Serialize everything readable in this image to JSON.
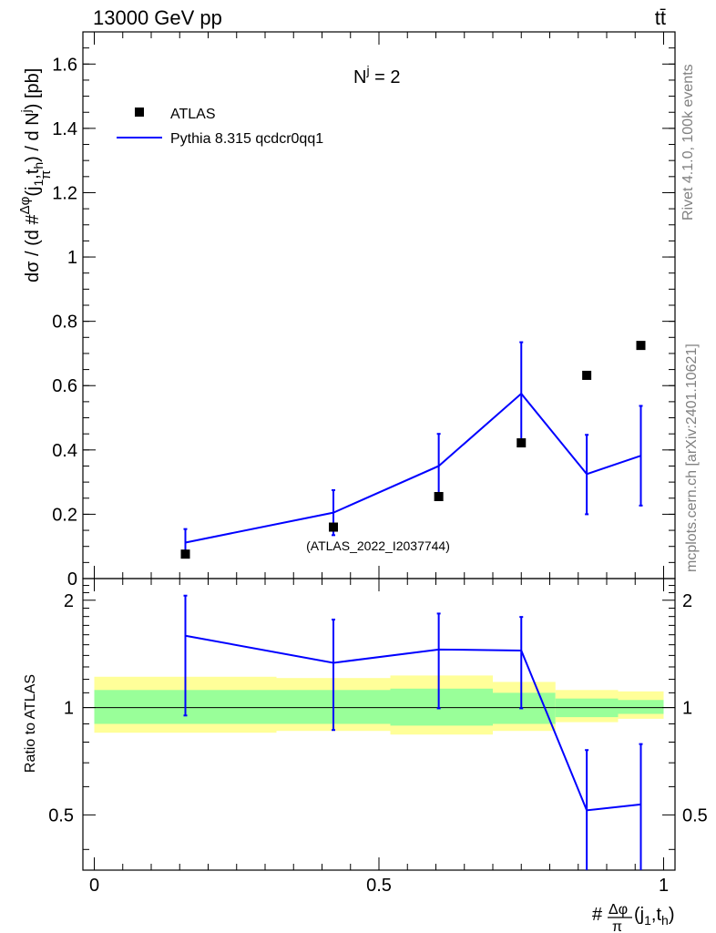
{
  "header": {
    "energy_label": "13000 GeV pp",
    "process_label": "tt̄"
  },
  "side_labels": {
    "rivet": "Rivet 4.1.0,  100k events",
    "source": "mcplots.cern.ch [arXiv:2401.10621]"
  },
  "colors": {
    "mc": "#0000ff",
    "band_inner": "#99ff99",
    "band_outer": "#ffff99",
    "data": "#000000",
    "watermark": "#999999"
  },
  "chart_data": [
    {
      "type": "scatter",
      "panel": "main",
      "annotation": "N^j = 2",
      "annotation_base": "N",
      "annotation_sup": "j",
      "annotation_rest": " = 2",
      "watermark": "(ATLAS_2022_I2037744)",
      "ylabel": "dσ / (d #Δφ/π(j1,th) / d N^j) [pb]",
      "ylabel_parts": {
        "pre": "dσ / (d #",
        "num": "Δφ",
        "den": "π",
        "args": "(j",
        "sub1": "1",
        "mid": ",t",
        "sub2": "h",
        "post": ") / d N",
        "sup": "j",
        "end": ") [pb]"
      },
      "ylim": [
        0,
        1.7
      ],
      "xlim": [
        -0.02,
        1.02
      ],
      "yticks": [
        0,
        0.2,
        0.4,
        0.6,
        0.8,
        1,
        1.2,
        1.4,
        1.6
      ],
      "ytick_labels": [
        "0",
        "0.2",
        "0.4",
        "0.6",
        "0.8",
        "1",
        "1.2",
        "1.4",
        "1.6"
      ],
      "legend": {
        "position": "top-left",
        "data_label": "ATLAS",
        "mc_label": "Pythia 8.315 qcdcr0qq1"
      },
      "series": [
        {
          "name": "ATLAS",
          "style": "markers",
          "x": [
            0.16,
            0.42,
            0.605,
            0.75,
            0.865,
            0.96
          ],
          "values": [
            0.076,
            0.16,
            0.255,
            0.422,
            0.632,
            0.725
          ]
        },
        {
          "name": "Pythia 8.315 qcdcr0qq1",
          "style": "line",
          "x": [
            0.16,
            0.42,
            0.605,
            0.75,
            0.865,
            0.96
          ],
          "values": [
            0.112,
            0.205,
            0.35,
            0.575,
            0.325,
            0.382
          ],
          "err_low": [
            0.042,
            0.07,
            0.1,
            0.16,
            0.125,
            0.155
          ],
          "err_high": [
            0.042,
            0.07,
            0.1,
            0.16,
            0.122,
            0.155
          ]
        }
      ]
    },
    {
      "type": "line",
      "panel": "ratio",
      "ylabel": "Ratio to ATLAS",
      "xlabel": "#Δφ/π(j1,th)",
      "xlabel_parts": {
        "pre": "#",
        "num": "Δφ",
        "den": "π",
        "args": "(j",
        "sub1": "1",
        "mid": ",t",
        "sub2": "h",
        "end": ")"
      },
      "ylim": [
        0.35,
        2.3
      ],
      "yticks": [
        0.5,
        1,
        2
      ],
      "ytick_labels": [
        "0.5",
        "1",
        "2"
      ],
      "xticks": [
        0,
        0.5,
        1
      ],
      "xtick_labels": [
        "0",
        "0.5",
        "1"
      ],
      "reference": 1,
      "band_edges": [
        0,
        0.32,
        0.52,
        0.7,
        0.81,
        0.92,
        1.0
      ],
      "band_inner": [
        [
          0.9,
          1.12
        ],
        [
          0.9,
          1.12
        ],
        [
          0.89,
          1.13
        ],
        [
          0.9,
          1.1
        ],
        [
          0.94,
          1.06
        ],
        [
          0.96,
          1.05
        ]
      ],
      "band_outer": [
        [
          0.85,
          1.22
        ],
        [
          0.86,
          1.21
        ],
        [
          0.84,
          1.23
        ],
        [
          0.86,
          1.18
        ],
        [
          0.91,
          1.12
        ],
        [
          0.93,
          1.11
        ]
      ],
      "series": [
        {
          "name": "Pythia 8.315 qcdcr0qq1",
          "x": [
            0.16,
            0.42,
            0.605,
            0.75,
            0.865,
            0.96
          ],
          "values": [
            1.59,
            1.335,
            1.455,
            1.445,
            0.515,
            0.535
          ],
          "err_low": [
            0.64,
            0.47,
            0.46,
            0.45,
            0.25,
            0.25
          ],
          "err_high": [
            0.47,
            0.43,
            0.38,
            0.35,
            0.245,
            0.255
          ]
        }
      ]
    }
  ]
}
